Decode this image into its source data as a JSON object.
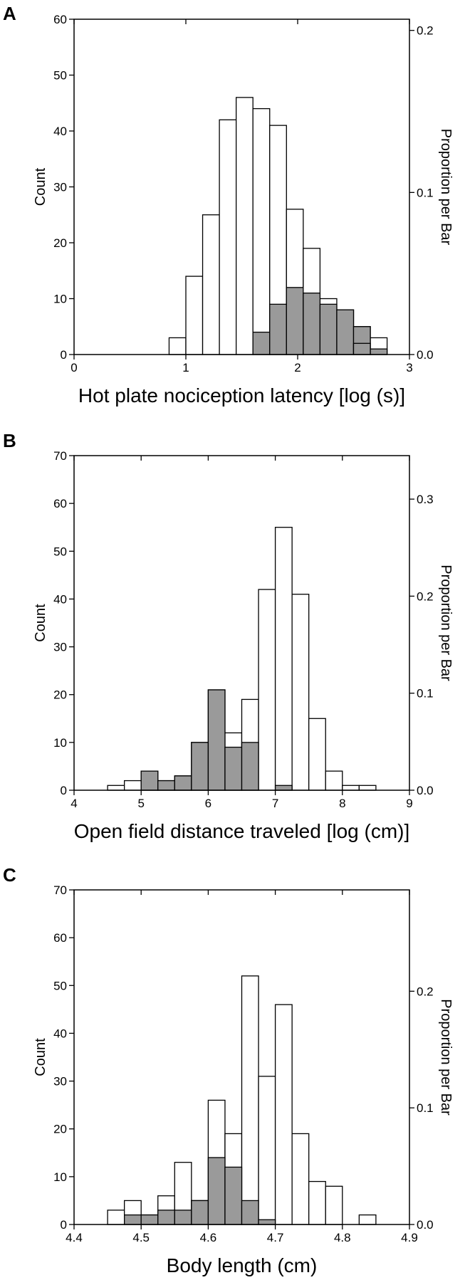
{
  "figure": {
    "panels": [
      "A",
      "B",
      "C"
    ]
  },
  "colors": {
    "bar_total_fill": "#ffffff",
    "bar_subset_fill": "#9a9a9a",
    "stroke": "#000000"
  },
  "chart_data": [
    {
      "panel": "A",
      "type": "bar",
      "histogram": true,
      "xlabel": "Hot plate nociception latency [log (s)]",
      "ylabel": "Count",
      "ylabel_right": "Proportion per Bar",
      "xlim": [
        0,
        3
      ],
      "ylim": [
        0,
        60
      ],
      "xticks": [
        "0",
        "1",
        "2",
        "3"
      ],
      "yticks": [
        "0",
        "10",
        "20",
        "30",
        "40",
        "50",
        "60"
      ],
      "right_ticks": [
        {
          "value": 0.0,
          "label": "0.0"
        },
        {
          "value": 0.1,
          "label": "0.1"
        },
        {
          "value": 0.2,
          "label": "0.2"
        }
      ],
      "right_scale_counts_per_unit": 290,
      "bin_edges": [
        0.85,
        1.0,
        1.15,
        1.3,
        1.45,
        1.6,
        1.75,
        1.9,
        2.05,
        2.2,
        2.35,
        2.5,
        2.65,
        2.8
      ],
      "series": [
        {
          "name": "",
          "role": "total",
          "values": [
            3,
            14,
            25,
            42,
            46,
            44,
            41,
            26,
            19,
            10,
            8,
            5,
            3
          ]
        },
        {
          "name": "",
          "role": "subset",
          "values": [
            0,
            0,
            0,
            0,
            0,
            4,
            9,
            12,
            11,
            9,
            8,
            5,
            1
          ]
        }
      ],
      "extra_subset_bins": [
        {
          "x0": 2.5,
          "x1": 2.65,
          "value": 2
        }
      ],
      "grid": false
    },
    {
      "panel": "B",
      "type": "bar",
      "histogram": true,
      "xlabel": "Open field distance traveled [log (cm)]",
      "ylabel": "Count",
      "ylabel_right": "Proportion per Bar",
      "xlim": [
        4,
        9
      ],
      "ylim": [
        0,
        70
      ],
      "xticks": [
        "4",
        "5",
        "6",
        "7",
        "8",
        "9"
      ],
      "yticks": [
        "0",
        "10",
        "20",
        "30",
        "40",
        "50",
        "60",
        "70"
      ],
      "right_ticks": [
        {
          "value": 0.0,
          "label": "0.0"
        },
        {
          "value": 0.1,
          "label": "0.1"
        },
        {
          "value": 0.2,
          "label": "0.2"
        },
        {
          "value": 0.3,
          "label": "0.3"
        }
      ],
      "right_scale_counts_per_unit": 203,
      "bin_edges": [
        4.5,
        4.75,
        5.0,
        5.25,
        5.5,
        5.75,
        6.0,
        6.25,
        6.5,
        6.75,
        7.0,
        7.25,
        7.5,
        7.75,
        8.0,
        8.25,
        8.5
      ],
      "series": [
        {
          "name": "",
          "role": "total",
          "values": [
            1,
            2,
            4,
            2,
            3,
            10,
            21,
            12,
            19,
            42,
            55,
            41,
            15,
            4,
            1,
            1
          ]
        },
        {
          "name": "",
          "role": "subset",
          "values": [
            0,
            0,
            4,
            2,
            3,
            10,
            21,
            9,
            10,
            0,
            1,
            0,
            0,
            0,
            0,
            0
          ]
        }
      ],
      "grid": false
    },
    {
      "panel": "C",
      "type": "bar",
      "histogram": true,
      "xlabel": "Body length (cm)",
      "ylabel": "Count",
      "ylabel_right": "Proportion per Bar",
      "xlim": [
        4.4,
        4.9
      ],
      "ylim": [
        0,
        70
      ],
      "xticks": [
        "4.4",
        "4.5",
        "4.6",
        "4.7",
        "4.8",
        "4.9"
      ],
      "yticks": [
        "0",
        "10",
        "20",
        "30",
        "40",
        "50",
        "60",
        "70"
      ],
      "right_ticks": [
        {
          "value": 0.0,
          "label": "0.0"
        },
        {
          "value": 0.1,
          "label": "0.1"
        },
        {
          "value": 0.2,
          "label": "0.2"
        }
      ],
      "right_scale_counts_per_unit": 244,
      "bin_edges": [
        4.45,
        4.475,
        4.5,
        4.525,
        4.55,
        4.575,
        4.6,
        4.625,
        4.65,
        4.675,
        4.7,
        4.725,
        4.75,
        4.775,
        4.8,
        4.825,
        4.85
      ],
      "series": [
        {
          "name": "",
          "role": "total",
          "values": [
            3,
            5,
            2,
            6,
            13,
            5,
            26,
            19,
            52,
            31,
            46,
            19,
            9,
            8,
            0,
            2
          ]
        },
        {
          "name": "",
          "role": "subset",
          "values": [
            0,
            2,
            2,
            3,
            3,
            5,
            14,
            12,
            5,
            1,
            0,
            0,
            0,
            0,
            0,
            0
          ]
        }
      ],
      "grid": false
    }
  ]
}
